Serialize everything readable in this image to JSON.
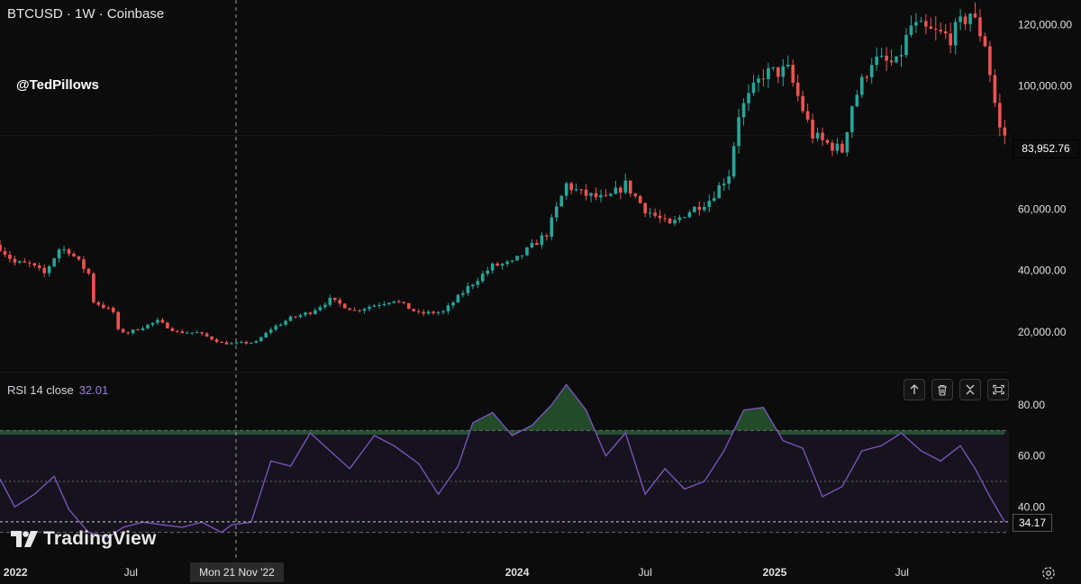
{
  "header": {
    "title": "BTCUSD · 1W · Coinbase",
    "watermark": "@TedPillows"
  },
  "brand": {
    "logo_text": "TradingView"
  },
  "indicator": {
    "label": "RSI 14 close",
    "value": "32.01",
    "last_badge": "34.17"
  },
  "price_badge": "83,952.76",
  "crosshair": {
    "time_label": "Mon 21 Nov '22"
  },
  "toolbar": {
    "buttons": [
      {
        "icon": "arrow-up-icon"
      },
      {
        "icon": "trash-icon"
      },
      {
        "icon": "collapse-icon"
      },
      {
        "icon": "maximize-icon"
      }
    ]
  },
  "colors": {
    "up": "#26a69a",
    "down": "#ef5350",
    "rsi": "#7e57c2",
    "rsi_fill_green": "#1e4d2b"
  },
  "chart_data": [
    {
      "type": "candlestick",
      "symbol": "BTCUSD",
      "interval": "1W",
      "exchange": "Coinbase",
      "y_ticks": [
        "20,000.00",
        "40,000.00",
        "60,000.00",
        "80,000.00",
        "100,000.00",
        "120,000.00"
      ],
      "y_tick_values": [
        20000,
        40000,
        60000,
        80000,
        100000,
        120000
      ],
      "ylim": [
        8000,
        128000
      ],
      "x_ticks": [
        "2022",
        "Jul",
        "2024",
        "Jul",
        "2025",
        "Jul"
      ],
      "x_tick_dates": [
        "2022-01-01",
        "2022-07-01",
        "2024-01-01",
        "2024-07-01",
        "2025-01-01",
        "2025-07-01"
      ],
      "xlim": [
        "2021-12-27",
        "2025-11-30"
      ],
      "last_price": 83952.76,
      "close_series": {
        "dates": [
          "2021-12-27",
          "2022-01-17",
          "2022-02-07",
          "2022-02-28",
          "2022-03-21",
          "2022-04-04",
          "2022-05-02",
          "2022-05-09",
          "2022-06-06",
          "2022-06-13",
          "2022-06-27",
          "2022-08-08",
          "2022-09-05",
          "2022-10-03",
          "2022-11-07",
          "2022-11-21",
          "2022-12-26",
          "2023-01-16",
          "2023-02-13",
          "2023-03-13",
          "2023-04-10",
          "2023-05-15",
          "2023-07-10",
          "2023-08-14",
          "2023-09-18",
          "2023-10-23",
          "2023-11-27",
          "2023-12-25",
          "2024-02-12",
          "2024-03-11",
          "2024-04-01",
          "2024-05-06",
          "2024-06-03",
          "2024-07-01",
          "2024-08-05",
          "2024-08-26",
          "2024-09-30",
          "2024-10-28",
          "2024-11-11",
          "2024-12-16",
          "2025-01-20",
          "2025-02-24",
          "2025-03-10",
          "2025-04-07",
          "2025-04-21",
          "2025-05-19",
          "2025-06-23",
          "2025-07-14",
          "2025-08-11",
          "2025-09-08",
          "2025-10-06",
          "2025-10-27",
          "2025-11-10",
          "2025-11-17",
          "2025-11-24"
        ],
        "values": [
          47500,
          42500,
          42000,
          39000,
          47000,
          46500,
          39000,
          30000,
          26500,
          20500,
          19800,
          23500,
          20000,
          19800,
          16500,
          16200,
          16700,
          21000,
          24500,
          26500,
          30500,
          27000,
          30500,
          26000,
          26500,
          34500,
          41500,
          42500,
          52000,
          68000,
          65000,
          63000,
          68000,
          60000,
          54500,
          58500,
          63000,
          71500,
          91000,
          104000,
          105000,
          84000,
          82000,
          79000,
          94000,
          108500,
          107000,
          119500,
          117500,
          116000,
          124000,
          114000,
          94500,
          86000,
          83952.76
        ]
      }
    },
    {
      "type": "line",
      "name": "RSI 14 close",
      "y_ticks": [
        "40.00",
        "60.00",
        "80.00"
      ],
      "y_tick_values": [
        40,
        60,
        80
      ],
      "ylim": [
        20,
        92
      ],
      "levels": [
        30,
        50,
        70
      ],
      "last_value": 34.17,
      "x": [
        "2021-12-27",
        "2022-01-17",
        "2022-02-14",
        "2022-03-14",
        "2022-04-04",
        "2022-05-02",
        "2022-05-30",
        "2022-06-20",
        "2022-07-18",
        "2022-08-15",
        "2022-09-12",
        "2022-10-10",
        "2022-11-07",
        "2022-11-21",
        "2022-12-19",
        "2023-01-16",
        "2023-02-13",
        "2023-03-13",
        "2023-04-10",
        "2023-05-08",
        "2023-06-12",
        "2023-07-10",
        "2023-08-14",
        "2023-09-11",
        "2023-10-09",
        "2023-10-30",
        "2023-11-27",
        "2023-12-25",
        "2024-01-22",
        "2024-02-19",
        "2024-03-11",
        "2024-04-08",
        "2024-05-06",
        "2024-06-03",
        "2024-07-01",
        "2024-07-29",
        "2024-08-26",
        "2024-09-23",
        "2024-10-21",
        "2024-11-18",
        "2024-12-16",
        "2025-01-13",
        "2025-02-10",
        "2025-03-10",
        "2025-04-07",
        "2025-05-05",
        "2025-06-02",
        "2025-06-30",
        "2025-07-28",
        "2025-08-25",
        "2025-09-22",
        "2025-10-13",
        "2025-11-03",
        "2025-11-24"
      ],
      "values": [
        51,
        40,
        45,
        52,
        39,
        30,
        28,
        32,
        34,
        33,
        32,
        34,
        30,
        33,
        34,
        58,
        56,
        69,
        62,
        55,
        68,
        64,
        57,
        45,
        56,
        73,
        77,
        68,
        72,
        80,
        88,
        78,
        60,
        69,
        45,
        55,
        47,
        50,
        62,
        78,
        79,
        66,
        63,
        44,
        48,
        62,
        64,
        69,
        62,
        58,
        64,
        55,
        44,
        34.17
      ]
    }
  ]
}
